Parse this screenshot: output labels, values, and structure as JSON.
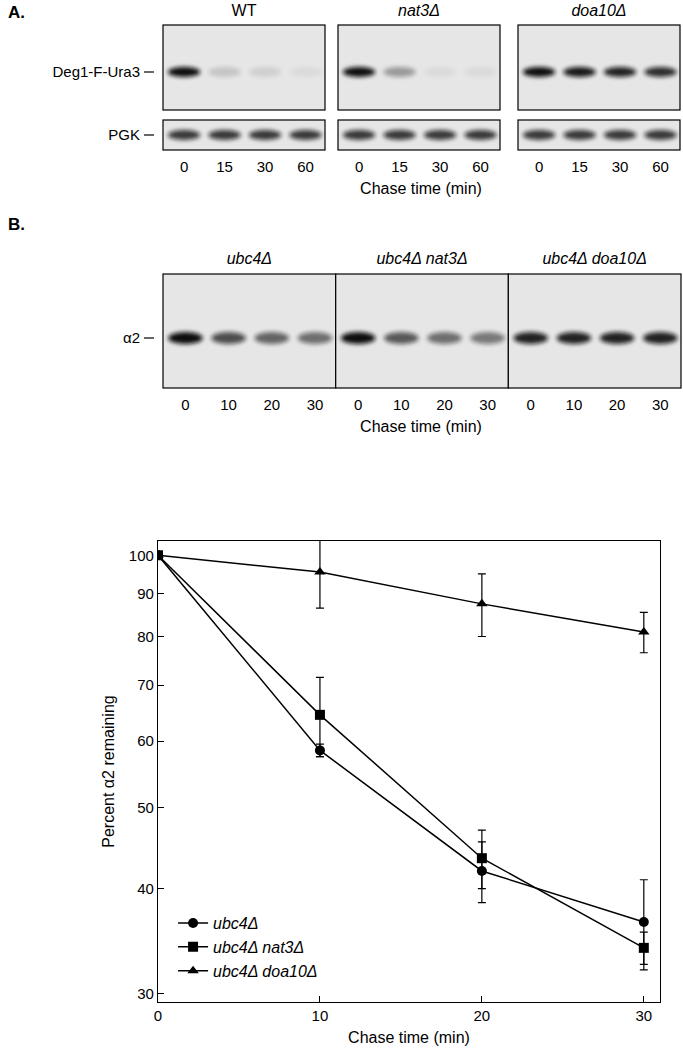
{
  "panels": [
    {
      "label": "A.",
      "rows": [
        "Deg1-F-Ura3",
        "PGK"
      ],
      "lanes": [
        0,
        15,
        30,
        60
      ],
      "x_label": "Chase time (min)",
      "blots": [
        {
          "title": "WT",
          "bands": [
            [
              1.0,
              0.15,
              0.1,
              0.05
            ],
            [
              0.8,
              0.8,
              0.8,
              0.8
            ]
          ]
        },
        {
          "title": "nat3Δ",
          "bands": [
            [
              1.0,
              0.35,
              0.05,
              0.05
            ],
            [
              0.8,
              0.8,
              0.8,
              0.8
            ]
          ]
        },
        {
          "title": "doa10Δ",
          "bands": [
            [
              1.0,
              0.95,
              0.9,
              0.85
            ],
            [
              0.8,
              0.8,
              0.8,
              0.8
            ]
          ]
        }
      ]
    },
    {
      "label": "B.",
      "rows": [
        "α2"
      ],
      "lanes": [
        0,
        10,
        20,
        30
      ],
      "x_label": "Chase time (min)",
      "blots": [
        {
          "title": "ubc4Δ",
          "bands": [
            [
              1.0,
              0.7,
              0.6,
              0.55
            ]
          ]
        },
        {
          "title": "ubc4Δ nat3Δ",
          "bands": [
            [
              1.0,
              0.65,
              0.55,
              0.5
            ]
          ]
        },
        {
          "title": "ubc4Δ doa10Δ",
          "bands": [
            [
              0.9,
              0.9,
              0.9,
              0.9
            ]
          ]
        }
      ]
    }
  ],
  "chart_data": {
    "type": "line",
    "x_label": "Chase time (min)",
    "y_label": "Percent α2 remaining",
    "x": [
      0,
      10,
      20,
      30
    ],
    "series": [
      {
        "name": "ubc4Δ",
        "color": "#000000",
        "marker": "circle",
        "values": [
          100,
          58.5,
          42,
          36.5
        ],
        "error": [
          0,
          1,
          3.5,
          4.5
        ]
      },
      {
        "name": "ubc4Δ nat3Δ",
        "color": "#000000",
        "marker": "square",
        "values": [
          100,
          64.5,
          43.5,
          34
        ],
        "error": [
          0,
          7,
          3.5,
          1.5
        ]
      },
      {
        "name": "ubc4Δ doa10Δ",
        "color": "#000000",
        "marker": "triangle-up",
        "values": [
          100,
          95.5,
          87.5,
          81
        ],
        "error": [
          0,
          9,
          7.5,
          4.5
        ]
      }
    ],
    "xlim": [
      0,
      31
    ],
    "xticks": [
      0,
      10,
      20,
      30
    ],
    "ylim": [
      29.3,
      104
    ],
    "yticks": [
      30,
      40,
      50,
      60,
      70,
      80,
      90,
      100
    ],
    "log": "y",
    "grid": false,
    "legend": "bottom left"
  }
}
